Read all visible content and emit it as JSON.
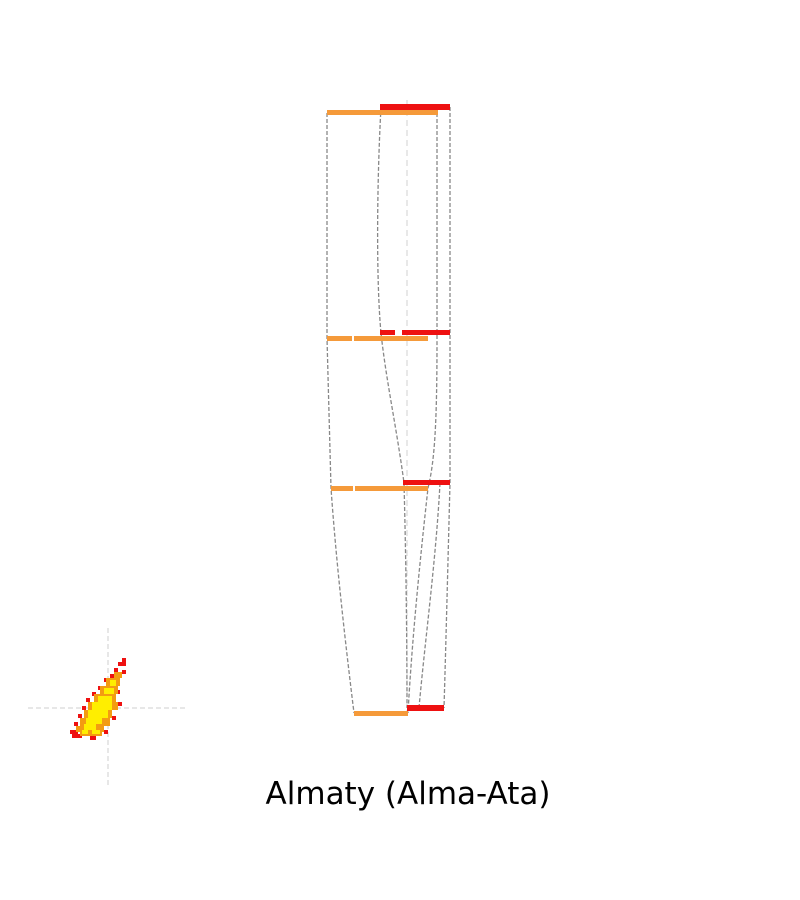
{
  "caption": "Almaty (Alma-Ata)",
  "colors": {
    "band_orange": "#f59a3a",
    "band_red": "#ee1111",
    "connector": "#888888",
    "axis": "#d0d0d0",
    "heat_red": "#ee1111",
    "heat_orange": "#f39c12",
    "heat_yellow": "#ffee00"
  }
}
